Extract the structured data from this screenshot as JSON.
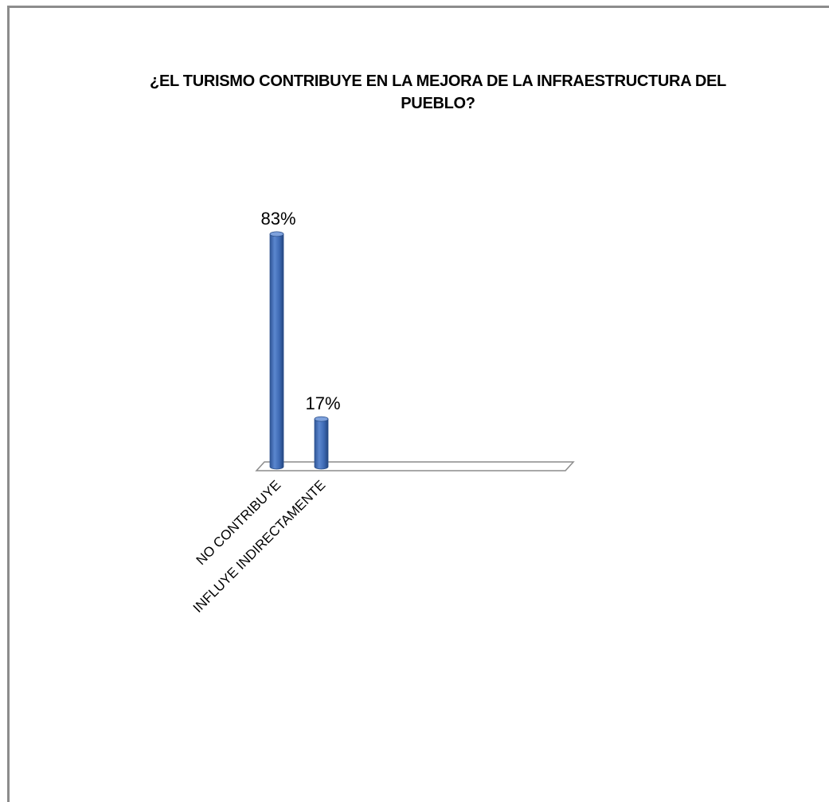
{
  "chart_data": {
    "type": "bar",
    "title": "¿EL TURISMO CONTRIBUYE EN LA MEJORA DE LA INFRAESTRUCTURA DEL PUEBLO?",
    "categories": [
      "NO CONTRIBUYE",
      "INFLUYE INDIRECTAMENTE"
    ],
    "values": [
      83,
      17
    ],
    "value_labels": [
      "83%",
      "17%"
    ],
    "ylim": [
      0,
      100
    ],
    "grid": false,
    "legend": "none",
    "style": "3d-cylinder",
    "bar_color": "#4472c4"
  }
}
